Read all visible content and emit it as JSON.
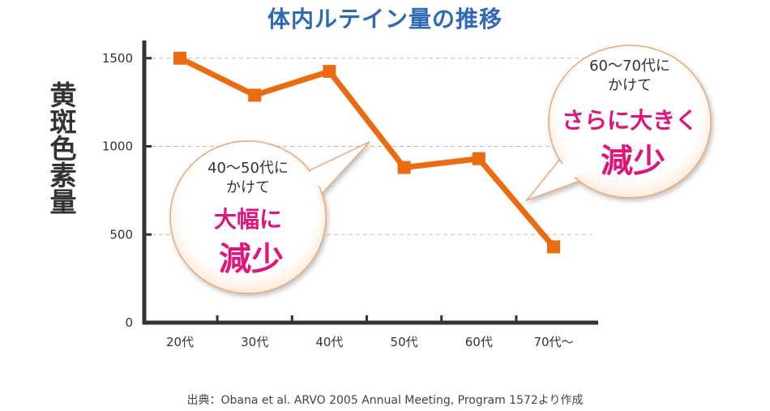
{
  "chart_data": {
    "type": "line",
    "title": "体内ルテイン量の推移",
    "ylabel": "黄斑色素量",
    "xlabel": "",
    "categories": [
      "20代",
      "30代",
      "40代",
      "50代",
      "60代",
      "70代〜"
    ],
    "series": [
      {
        "name": "黄斑色素量",
        "values": [
          1500,
          1290,
          1425,
          880,
          930,
          430
        ]
      }
    ],
    "ylim": [
      0,
      1600
    ],
    "yticks": [
      0,
      500,
      1000,
      1500
    ],
    "ytick_labels": [
      "0",
      "500",
      "1000",
      "1500"
    ],
    "grid": true,
    "annotations": [
      {
        "line1": "40〜50代に",
        "line2": "かけて",
        "line3": "大幅に",
        "line4": "減少"
      },
      {
        "line1": "60〜70代に",
        "line2": "かけて",
        "line3": "さらに大きく",
        "line4": "減少"
      }
    ],
    "source": "出典：Obana et al. ARVO 2005 Annual Meeting, Program 1572より作成"
  },
  "colors": {
    "title": "#2e68b7",
    "line": "#eb6b10",
    "emphasis": "#e0147c",
    "bubble_border": "#e8a878",
    "axis": "#333333",
    "grid": "#bbbbbb"
  }
}
